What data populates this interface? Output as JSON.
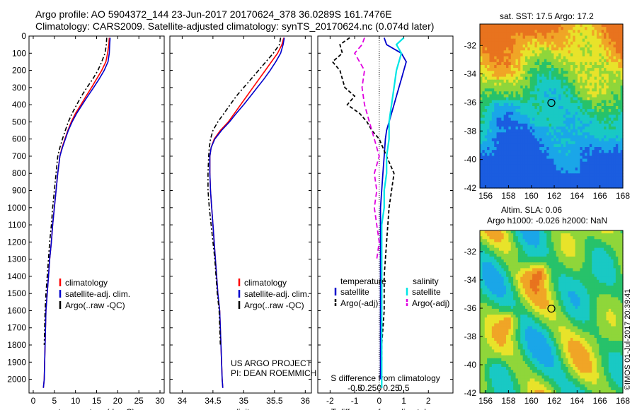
{
  "header": {
    "title_line1": "Argo profile: AO 5904372_144 23-Jun-2017 20170624_378 36.0289S 161.7476E",
    "title_line2": "Climatology: CARS2009. Satellite-adjusted climatology: synTS_20170624.nc (0.074d later)"
  },
  "footer_stamp": "©IMOS 01-Jul-2017 20:39:41",
  "colors": {
    "climatology": "#ff0000",
    "satellite": "#0000cc",
    "argo": "#000000",
    "sat_salinity": "#00e5e5",
    "argo_adj_salinity": "#e000e0"
  },
  "chart_data": [
    {
      "type": "line",
      "panel": "temperature",
      "xlabel": "temperature (deg C)",
      "ylabel": "",
      "xlim": [
        -1,
        31
      ],
      "ylim": [
        2080,
        0
      ],
      "xticks": [
        0,
        5,
        10,
        15,
        20,
        25,
        30
      ],
      "yticks": [
        0,
        100,
        200,
        300,
        400,
        500,
        600,
        700,
        800,
        900,
        1000,
        1100,
        1200,
        1300,
        1400,
        1500,
        1600,
        1700,
        1800,
        1900,
        2000
      ],
      "legend": [
        "climatology",
        "satellite-adj. clim.",
        "Argo(..raw -QC)"
      ],
      "legend_placement": "lower-center",
      "series": [
        {
          "name": "climatology",
          "x": [
            18.0,
            17.9,
            17.6,
            17.2,
            16.2,
            15.0,
            13.8,
            12.5,
            11.3,
            10.0,
            9.0,
            8.2,
            7.5,
            6.8,
            6.3,
            5.8,
            5.4,
            5.0,
            4.6,
            4.3,
            3.9,
            3.6,
            3.3,
            3.0,
            2.8,
            2.6,
            2.4
          ],
          "y": [
            10,
            50,
            100,
            150,
            200,
            250,
            300,
            350,
            400,
            450,
            500,
            550,
            600,
            650,
            700,
            800,
            900,
            1000,
            1100,
            1200,
            1300,
            1400,
            1500,
            1600,
            1800,
            2000,
            2050
          ]
        },
        {
          "name": "satellite-adj. clim.",
          "x": [
            18.2,
            18.1,
            18.0,
            17.7,
            16.8,
            15.6,
            14.3,
            12.9,
            11.6,
            10.3,
            9.2,
            8.3,
            7.6,
            6.9,
            6.3,
            5.8,
            5.4,
            5.0,
            4.6,
            4.3,
            3.9,
            3.6,
            3.3,
            3.0,
            2.8,
            2.6,
            2.4
          ],
          "y": [
            10,
            50,
            100,
            150,
            200,
            250,
            300,
            350,
            400,
            450,
            500,
            550,
            600,
            650,
            700,
            800,
            900,
            1000,
            1100,
            1200,
            1300,
            1400,
            1500,
            1600,
            1800,
            2000,
            2050
          ]
        },
        {
          "name": "Argo(..raw -QC)",
          "x": [
            17.4,
            17.3,
            17.0,
            16.2,
            15.3,
            14.1,
            12.7,
            11.4,
            10.3,
            9.2,
            8.3,
            7.6,
            6.9,
            6.3,
            5.8,
            5.4,
            5.0,
            4.6,
            4.3,
            3.9,
            3.6,
            3.3,
            3.0,
            2.8,
            2.6
          ],
          "y": [
            10,
            50,
            100,
            150,
            200,
            250,
            300,
            350,
            400,
            450,
            500,
            550,
            600,
            650,
            700,
            800,
            900,
            1000,
            1100,
            1200,
            1300,
            1400,
            1500,
            1600,
            1800
          ]
        }
      ]
    },
    {
      "type": "line",
      "panel": "salinity",
      "xlabel": "salinity",
      "ylabel": "",
      "xlim": [
        33.8,
        36.1
      ],
      "ylim": [
        2080,
        0
      ],
      "xticks": [
        34,
        34.5,
        35,
        35.5,
        36
      ],
      "xticklabels": [
        "34",
        "34.5",
        "35",
        "35.5",
        "36"
      ],
      "legend": [
        "climatology",
        "satellite-adj. clim.",
        "Argo(..raw -QC)"
      ],
      "legend_placement": "lower-right",
      "annotations": [
        "US ARGO PROJECT",
        "PI: DEAN ROEMMICH"
      ],
      "series": [
        {
          "name": "climatology",
          "x": [
            35.65,
            35.62,
            35.55,
            35.45,
            35.35,
            35.25,
            35.15,
            35.05,
            34.95,
            34.85,
            34.75,
            34.62,
            34.52,
            34.47,
            34.45,
            34.45,
            34.46,
            34.48,
            34.5,
            34.52,
            34.54,
            34.56,
            34.58,
            34.61,
            34.63,
            34.65,
            34.66
          ],
          "y": [
            10,
            50,
            100,
            150,
            200,
            250,
            300,
            350,
            400,
            450,
            500,
            550,
            600,
            650,
            700,
            800,
            900,
            1000,
            1100,
            1200,
            1300,
            1400,
            1500,
            1600,
            1800,
            2000,
            2050
          ]
        },
        {
          "name": "satellite-adj. clim.",
          "x": [
            35.66,
            35.64,
            35.6,
            35.52,
            35.43,
            35.33,
            35.22,
            35.11,
            35.0,
            34.88,
            34.77,
            34.64,
            34.53,
            34.47,
            34.45,
            34.45,
            34.46,
            34.48,
            34.5,
            34.52,
            34.54,
            34.56,
            34.58,
            34.61,
            34.63,
            34.65,
            34.66
          ],
          "y": [
            10,
            50,
            100,
            150,
            200,
            250,
            300,
            350,
            400,
            450,
            500,
            550,
            600,
            650,
            700,
            800,
            900,
            1000,
            1100,
            1200,
            1300,
            1400,
            1500,
            1600,
            1800,
            2000,
            2050
          ]
        },
        {
          "name": "Argo(..raw -QC)",
          "x": [
            35.6,
            35.58,
            35.48,
            35.36,
            35.24,
            35.12,
            35.0,
            34.88,
            34.78,
            34.68,
            34.58,
            34.5,
            34.46,
            34.44,
            34.43,
            34.42,
            34.42,
            34.44,
            34.47,
            34.5,
            34.53,
            34.55,
            34.57,
            34.6,
            34.62
          ],
          "y": [
            10,
            50,
            100,
            150,
            200,
            250,
            300,
            350,
            400,
            450,
            500,
            550,
            600,
            650,
            700,
            800,
            900,
            1000,
            1100,
            1200,
            1300,
            1400,
            1500,
            1600,
            1800
          ]
        }
      ]
    },
    {
      "type": "line",
      "panel": "difference",
      "xlabel": "T difference from climatology",
      "xlabel_top": "S difference from climatology",
      "xlim": [
        -2.5,
        3
      ],
      "ylim": [
        2080,
        0
      ],
      "xticks": [
        -2,
        -1,
        0,
        1,
        2
      ],
      "sticks": [
        -0.5,
        -0.25,
        0,
        0.25,
        0.5
      ],
      "sticklabels": [
        "-0.5",
        "-0.25",
        "0",
        "0.25",
        "0.5"
      ],
      "legend_left_title": "temperature",
      "legend_right_title": "salinity",
      "legend": [
        "satellite",
        "Argo(-adj)",
        "satellite",
        "Argo(-adj)"
      ],
      "legend_placement": "lower-center",
      "series": [
        {
          "name": "satellite",
          "x": [
            0.2,
            0.3,
            0.9,
            1.1,
            1.0,
            0.9,
            0.8,
            0.7,
            0.6,
            0.5,
            0.4,
            0.3,
            0.25,
            0.2,
            0.15,
            0.1,
            0.05,
            0.05,
            0.05,
            0.05,
            0.05,
            0.05
          ],
          "y": [
            10,
            50,
            100,
            150,
            200,
            250,
            300,
            350,
            400,
            450,
            500,
            550,
            600,
            700,
            800,
            900,
            1000,
            1200,
            1400,
            1600,
            1800,
            2000
          ]
        },
        {
          "name": "Argo(-adj)",
          "x": [
            -1.2,
            -1.6,
            -1.5,
            -1.9,
            -1.6,
            -1.5,
            -1.4,
            -1.0,
            -1.3,
            -0.8,
            -0.5,
            -0.3,
            0.0,
            0.3,
            0.6,
            0.5,
            0.4,
            0.3,
            0.2,
            0.2,
            0.1,
            0.1
          ],
          "y": [
            10,
            50,
            100,
            150,
            200,
            250,
            300,
            350,
            400,
            450,
            500,
            550,
            600,
            700,
            800,
            900,
            1000,
            1200,
            1400,
            1600,
            1800,
            1900
          ]
        },
        {
          "name": "satellite",
          "x": [
            0.5,
            0.35,
            0.45,
            0.4,
            0.35,
            0.3,
            0.25,
            0.2,
            0.2,
            0.15,
            0.15,
            0.1,
            0.1,
            0.05,
            0.05,
            0.05,
            0.05,
            0.05,
            0.05,
            0.05
          ],
          "y": [
            10,
            50,
            100,
            150,
            200,
            300,
            400,
            500,
            600,
            700,
            800,
            900,
            1000,
            1100,
            1200,
            1400,
            1600,
            1800,
            2000,
            2050
          ]
        },
        {
          "name": "Argo(-adj)",
          "x": [
            -0.3,
            -0.35,
            -0.5,
            -0.4,
            -0.3,
            -0.35,
            -0.3,
            -0.2,
            -0.1,
            0.0,
            -0.1,
            -0.05,
            -0.1,
            -0.05,
            0.0,
            -0.05
          ],
          "y": [
            10,
            50,
            100,
            150,
            200,
            300,
            400,
            500,
            600,
            700,
            800,
            900,
            1000,
            1100,
            1200,
            1300
          ]
        }
      ]
    },
    {
      "type": "heatmap",
      "panel": "sst_map",
      "title": "sat. SST: 17.5  Argo: 17.2",
      "xlim": [
        155.5,
        168
      ],
      "ylim": [
        -42,
        -30.5
      ],
      "xticks": [
        156,
        158,
        160,
        162,
        164,
        166,
        168
      ],
      "yticks": [
        -32,
        -34,
        -36,
        -38,
        -40,
        -42
      ],
      "marker": {
        "lon": 161.75,
        "lat": -36.03
      }
    },
    {
      "type": "heatmap",
      "panel": "sla_map",
      "title_line1": "Altim. SLA: 0.06",
      "title_line2": "Argo h1000: -0.026 h2000: NaN",
      "xlim": [
        155.5,
        168
      ],
      "ylim": [
        -42,
        -30.5
      ],
      "xticks": [
        156,
        158,
        160,
        162,
        164,
        166,
        168
      ],
      "yticks": [
        -32,
        -34,
        -36,
        -38,
        -40,
        -42
      ],
      "marker": {
        "lon": 161.75,
        "lat": -36.03
      }
    }
  ]
}
